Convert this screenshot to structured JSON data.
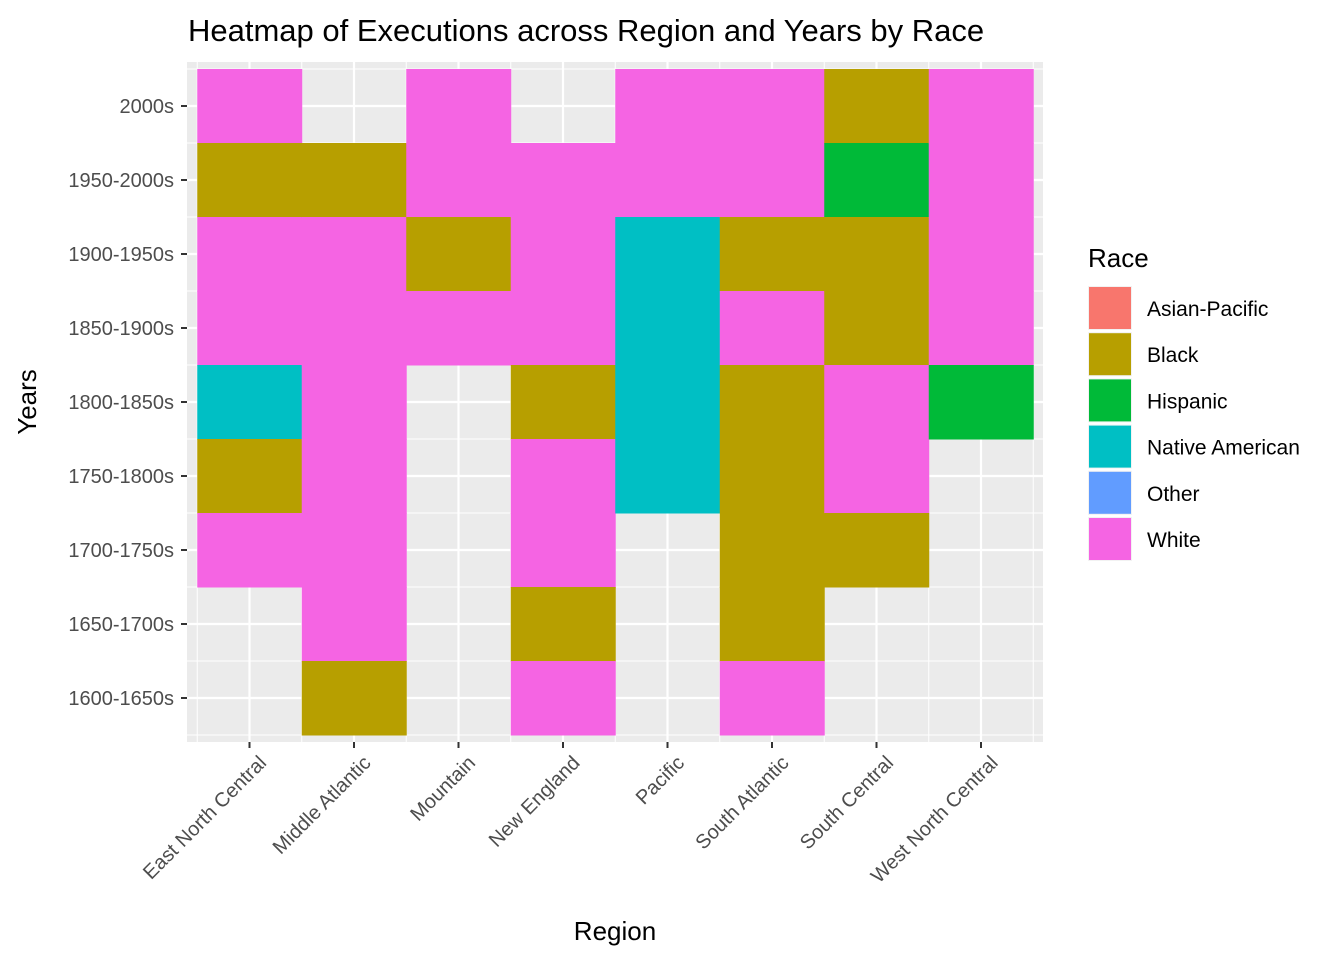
{
  "chart_data": {
    "type": "heatmap",
    "title": "Heatmap of Executions across Region and Years by Race",
    "xlabel": "Region",
    "ylabel": "Years",
    "x_categories": [
      "East North Central",
      "Middle Atlantic",
      "Mountain",
      "New England",
      "Pacific",
      "South Atlantic",
      "South Central",
      "West North Central"
    ],
    "y_categories": [
      "1600-1650s",
      "1650-1700s",
      "1700-1750s",
      "1750-1800s",
      "1800-1850s",
      "1850-1900s",
      "1900-1950s",
      "1950-2000s",
      "2000s"
    ],
    "legend": {
      "title": "Race",
      "placement": "right",
      "entries": [
        {
          "label": "Asian-Pacific",
          "color": "#F8766D"
        },
        {
          "label": "Black",
          "color": "#B79F00"
        },
        {
          "label": "Hispanic",
          "color": "#00BA38"
        },
        {
          "label": "Native American",
          "color": "#00BFC4"
        },
        {
          "label": "Other",
          "color": "#619CFF"
        },
        {
          "label": "White",
          "color": "#F564E3"
        }
      ]
    },
    "cells": [
      {
        "region": "East North Central",
        "years": "2000s",
        "race": "White"
      },
      {
        "region": "East North Central",
        "years": "1950-2000s",
        "race": "Black"
      },
      {
        "region": "East North Central",
        "years": "1900-1950s",
        "race": "White"
      },
      {
        "region": "East North Central",
        "years": "1850-1900s",
        "race": "White"
      },
      {
        "region": "East North Central",
        "years": "1800-1850s",
        "race": "Native American"
      },
      {
        "region": "East North Central",
        "years": "1750-1800s",
        "race": "Black"
      },
      {
        "region": "East North Central",
        "years": "1700-1750s",
        "race": "White"
      },
      {
        "region": "Middle Atlantic",
        "years": "1950-2000s",
        "race": "Black"
      },
      {
        "region": "Middle Atlantic",
        "years": "1900-1950s",
        "race": "White"
      },
      {
        "region": "Middle Atlantic",
        "years": "1850-1900s",
        "race": "White"
      },
      {
        "region": "Middle Atlantic",
        "years": "1800-1850s",
        "race": "White"
      },
      {
        "region": "Middle Atlantic",
        "years": "1750-1800s",
        "race": "White"
      },
      {
        "region": "Middle Atlantic",
        "years": "1700-1750s",
        "race": "White"
      },
      {
        "region": "Middle Atlantic",
        "years": "1650-1700s",
        "race": "White"
      },
      {
        "region": "Middle Atlantic",
        "years": "1600-1650s",
        "race": "Black"
      },
      {
        "region": "Mountain",
        "years": "2000s",
        "race": "White"
      },
      {
        "region": "Mountain",
        "years": "1950-2000s",
        "race": "White"
      },
      {
        "region": "Mountain",
        "years": "1900-1950s",
        "race": "Black"
      },
      {
        "region": "Mountain",
        "years": "1850-1900s",
        "race": "White"
      },
      {
        "region": "New England",
        "years": "1950-2000s",
        "race": "White"
      },
      {
        "region": "New England",
        "years": "1900-1950s",
        "race": "White"
      },
      {
        "region": "New England",
        "years": "1850-1900s",
        "race": "White"
      },
      {
        "region": "New England",
        "years": "1800-1850s",
        "race": "Black"
      },
      {
        "region": "New England",
        "years": "1750-1800s",
        "race": "White"
      },
      {
        "region": "New England",
        "years": "1700-1750s",
        "race": "White"
      },
      {
        "region": "New England",
        "years": "1650-1700s",
        "race": "Black"
      },
      {
        "region": "New England",
        "years": "1600-1650s",
        "race": "White"
      },
      {
        "region": "Pacific",
        "years": "2000s",
        "race": "White"
      },
      {
        "region": "Pacific",
        "years": "1950-2000s",
        "race": "White"
      },
      {
        "region": "Pacific",
        "years": "1900-1950s",
        "race": "Native American"
      },
      {
        "region": "Pacific",
        "years": "1850-1900s",
        "race": "Native American"
      },
      {
        "region": "Pacific",
        "years": "1800-1850s",
        "race": "Native American"
      },
      {
        "region": "Pacific",
        "years": "1750-1800s",
        "race": "Native American"
      },
      {
        "region": "South Atlantic",
        "years": "2000s",
        "race": "White"
      },
      {
        "region": "South Atlantic",
        "years": "1950-2000s",
        "race": "White"
      },
      {
        "region": "South Atlantic",
        "years": "1900-1950s",
        "race": "Black"
      },
      {
        "region": "South Atlantic",
        "years": "1850-1900s",
        "race": "White"
      },
      {
        "region": "South Atlantic",
        "years": "1800-1850s",
        "race": "Black"
      },
      {
        "region": "South Atlantic",
        "years": "1750-1800s",
        "race": "Black"
      },
      {
        "region": "South Atlantic",
        "years": "1700-1750s",
        "race": "Black"
      },
      {
        "region": "South Atlantic",
        "years": "1650-1700s",
        "race": "Black"
      },
      {
        "region": "South Atlantic",
        "years": "1600-1650s",
        "race": "White"
      },
      {
        "region": "South Central",
        "years": "2000s",
        "race": "Black"
      },
      {
        "region": "South Central",
        "years": "1950-2000s",
        "race": "Hispanic"
      },
      {
        "region": "South Central",
        "years": "1900-1950s",
        "race": "Black"
      },
      {
        "region": "South Central",
        "years": "1850-1900s",
        "race": "Black"
      },
      {
        "region": "South Central",
        "years": "1800-1850s",
        "race": "White"
      },
      {
        "region": "South Central",
        "years": "1750-1800s",
        "race": "White"
      },
      {
        "region": "South Central",
        "years": "1700-1750s",
        "race": "Black"
      },
      {
        "region": "West North Central",
        "years": "2000s",
        "race": "White"
      },
      {
        "region": "West North Central",
        "years": "1950-2000s",
        "race": "White"
      },
      {
        "region": "West North Central",
        "years": "1900-1950s",
        "race": "White"
      },
      {
        "region": "West North Central",
        "years": "1850-1900s",
        "race": "White"
      },
      {
        "region": "West North Central",
        "years": "1800-1850s",
        "race": "Hispanic"
      }
    ],
    "grid": true,
    "panel_background": "#EBEBEB",
    "grid_color": "#FFFFFF"
  }
}
